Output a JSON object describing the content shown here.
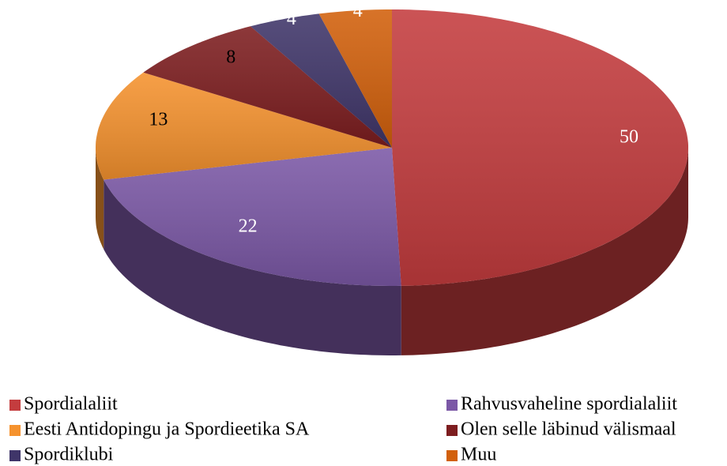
{
  "chart_data": {
    "type": "pie3d",
    "categories": [
      "Spordialaliit",
      "Rahvusvaheline spordialaliit",
      "Eesti Antidopingu ja Spordieetika SA",
      "Olen selle läbinud välismaal",
      "Spordiklubi",
      "Muu"
    ],
    "values": [
      50,
      22,
      13,
      8,
      4,
      4
    ],
    "colors": [
      "#c43c3e",
      "#7b58a6",
      "#f5922e",
      "#7d1d1f",
      "#3f3569",
      "#d2600b"
    ],
    "legend": "bottom"
  }
}
